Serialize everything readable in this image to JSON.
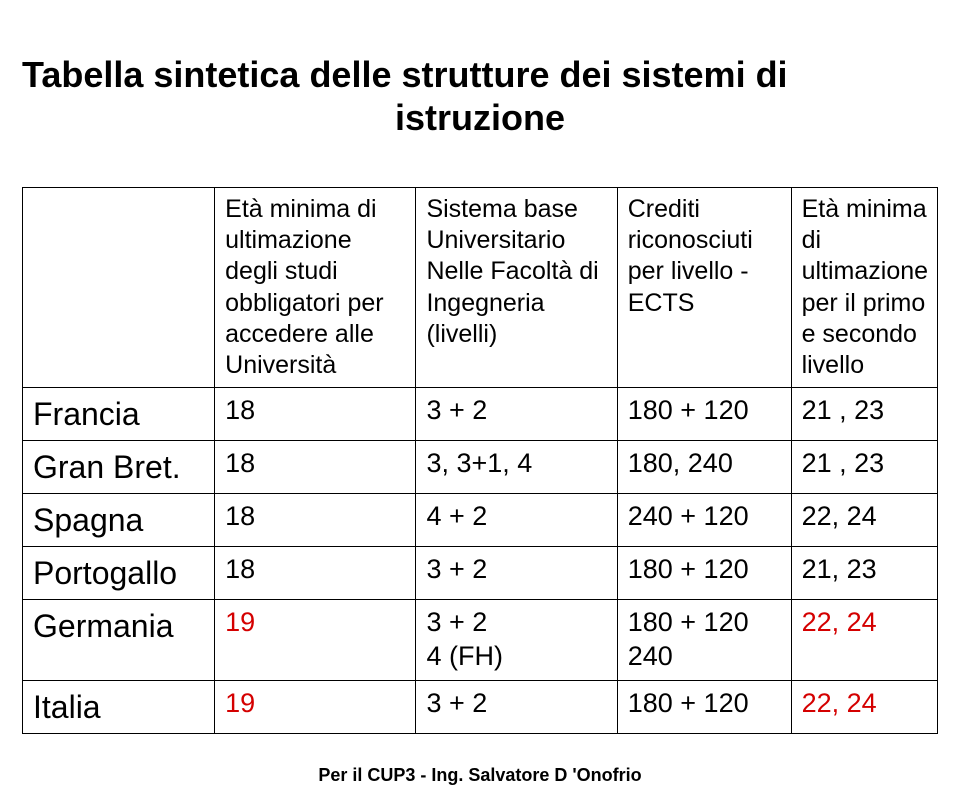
{
  "title_line1": "Tabella sintetica delle strutture dei sistemi di",
  "title_line2": "istruzione",
  "columns": [
    "",
    "Età minima di ultimazione degli studi obbligatori per accedere alle Università",
    "Sistema base Universitario Nelle Facoltà di Ingegneria (livelli)",
    "Crediti riconosciuti per livello - ECTS",
    "Età minima di ultimazione per il primo e secondo livello"
  ],
  "rows": [
    {
      "label": "Francia",
      "age": "18",
      "system": "3 + 2",
      "credits": "180 + 120",
      "final": "21 , 23",
      "color": "#000000"
    },
    {
      "label": "Gran Bret.",
      "age": "18",
      "system": "3, 3+1, 4",
      "credits": "180,  240",
      "final": "21 , 23",
      "color": "#000000"
    },
    {
      "label": "Spagna",
      "age": "18",
      "system": "4 + 2",
      "credits": "240 + 120",
      "final": "22,  24",
      "color": "#000000"
    },
    {
      "label": "Portogallo",
      "age": "18",
      "system": "3 + 2",
      "credits": "180 + 120",
      "final": "21,  23",
      "color": "#000000"
    },
    {
      "label": "Germania",
      "age": "19",
      "system": "3 + 2\n4 (FH)",
      "credits": "180 + 120\n240",
      "final": "22,  24",
      "color": "#d40000"
    },
    {
      "label": "Italia",
      "age": "19",
      "system": "3 + 2",
      "credits": "180 + 120",
      "final": "22,  24",
      "color": "#d40000"
    }
  ],
  "footer": "Per il CUP3 - Ing. Salvatore D 'Onofrio",
  "style": {
    "title_fontsize": 36,
    "header_fontsize": 25,
    "cell_fontsize": 27,
    "rowlabel_fontsize": 32,
    "border_color": "#000000",
    "background_color": "#ffffff",
    "text_color": "#000000",
    "highlight_color": "#d40000",
    "column_widths_pct": [
      21,
      22,
      22,
      19,
      16
    ]
  }
}
